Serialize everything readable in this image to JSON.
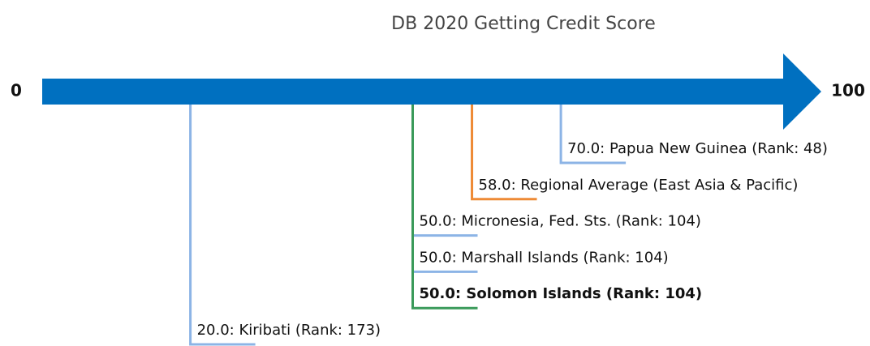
{
  "chart_data": {
    "type": "scale",
    "title": "DB 2020 Getting Credit Score",
    "xlim": [
      0,
      100
    ],
    "xticks": [
      0,
      100
    ],
    "axis_color": "#0070c0",
    "values": [
      70,
      58,
      50,
      50,
      50,
      20
    ],
    "labels": [
      "70.0: Papua New Guinea (Rank: 48)",
      "58.0: Regional Average (East Asia & Pacific)",
      "50.0: Micronesia, Fed. Sts. (Rank: 104)",
      "50.0: Marshall Islands (Rank: 104)",
      "50.0: Solomon Islands (Rank: 104)",
      "20.0: Kiribati (Rank: 173)"
    ],
    "colors": [
      "#8cb4e6",
      "#ee8a35",
      "#8cb4e6",
      "#8cb4e6",
      "#3a9a5a",
      "#8cb4e6"
    ],
    "bold": [
      false,
      false,
      false,
      false,
      true,
      false
    ]
  }
}
